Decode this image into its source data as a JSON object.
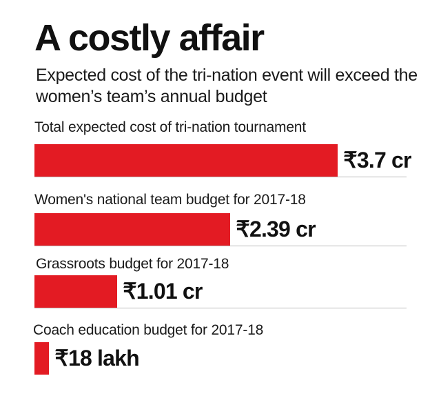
{
  "chart_data": {
    "type": "bar",
    "title": "A costly affair",
    "subtitle": "Expected cost of the tri-nation event will exceed the women’s team’s annual budget",
    "categories": [
      "Total expected cost of tri-nation tournament",
      "Women's national team budget for 2017-18",
      "Grassroots budget for 2017-18",
      "Coach education budget  for 2017-18"
    ],
    "values": [
      3.7,
      2.39,
      1.01,
      0.18
    ],
    "unit": "₹ crore",
    "value_labels": [
      "₹3.7 cr",
      "₹2.39 cr",
      "₹1.01 cr",
      "₹18 lakh"
    ],
    "bar_color": "#e31b23",
    "orientation": "horizontal",
    "xlim": [
      0,
      5.0
    ],
    "grid": false,
    "legend": "none"
  }
}
